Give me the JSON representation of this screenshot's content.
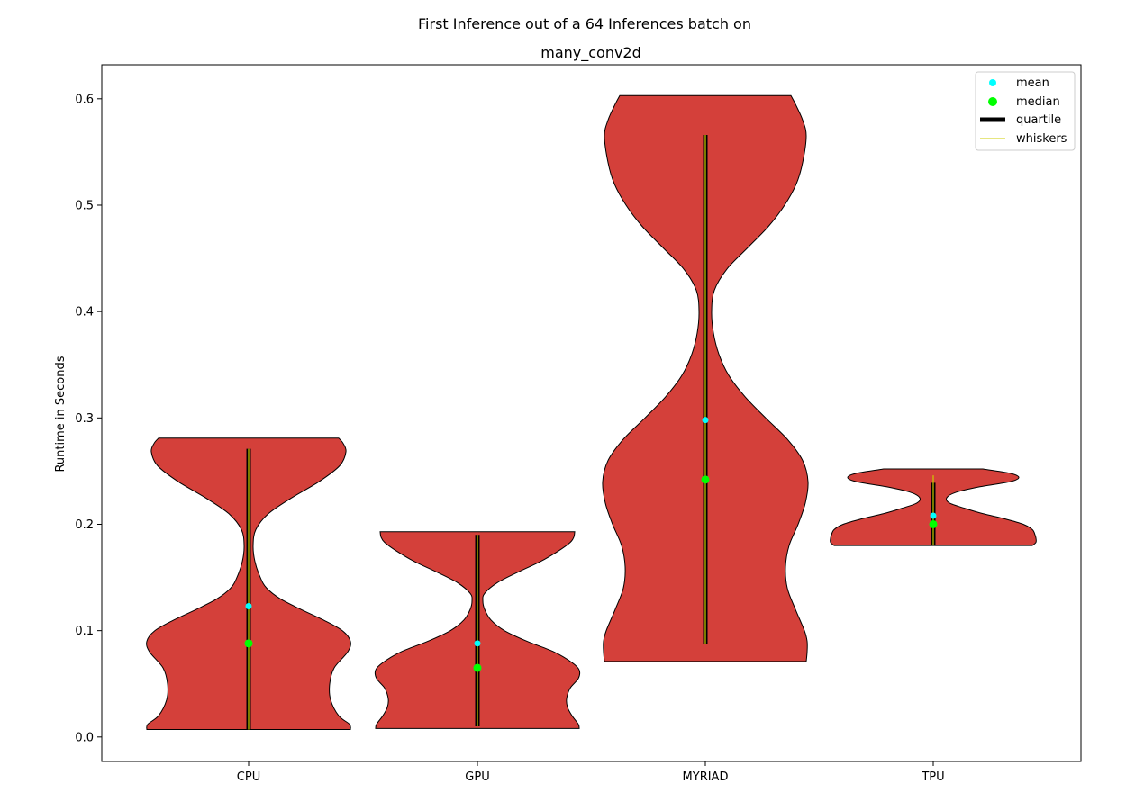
{
  "chart_data": {
    "type": "violin",
    "title": "First Inference out of a 64 Inferences batch on",
    "subtitle": "many_conv2d",
    "xlabel": "",
    "ylabel": "Runtime in Seconds",
    "ylim": [
      -0.023,
      0.632
    ],
    "yticks": [
      0.0,
      0.1,
      0.2,
      0.3,
      0.4,
      0.5,
      0.6
    ],
    "ytick_labels": [
      "0.0",
      "0.1",
      "0.2",
      "0.3",
      "0.4",
      "0.5",
      "0.6"
    ],
    "categories": [
      "CPU",
      "GPU",
      "MYRIAD",
      "TPU"
    ],
    "grid": false,
    "legend_position": "top-right",
    "legend": [
      {
        "label": "mean",
        "kind": "marker",
        "color": "#00ffff"
      },
      {
        "label": "median",
        "kind": "marker",
        "color": "#00ff00"
      },
      {
        "label": "quartile",
        "kind": "thick-line",
        "color": "#000000"
      },
      {
        "label": "whiskers",
        "kind": "thin-line",
        "color": "#cccc00"
      }
    ],
    "colors": {
      "violin_fill": "#d4403a",
      "violin_edge": "#000000",
      "mean": "#00ffff",
      "median": "#00ff00",
      "quartile": "#000000",
      "whiskers": "#cccc00"
    },
    "series": [
      {
        "category": "CPU",
        "min": 0.007,
        "max": 0.281,
        "mean": 0.123,
        "median": 0.088,
        "q1": 0.007,
        "q3": 0.271,
        "whisker_low": 0.007,
        "whisker_high": 0.271,
        "profile": [
          [
            0.007,
            0.113
          ],
          [
            0.012,
            0.112
          ],
          [
            0.02,
            0.1
          ],
          [
            0.035,
            0.091
          ],
          [
            0.05,
            0.09
          ],
          [
            0.065,
            0.095
          ],
          [
            0.08,
            0.11
          ],
          [
            0.09,
            0.113
          ],
          [
            0.1,
            0.104
          ],
          [
            0.11,
            0.083
          ],
          [
            0.12,
            0.058
          ],
          [
            0.13,
            0.035
          ],
          [
            0.14,
            0.02
          ],
          [
            0.15,
            0.013
          ],
          [
            0.165,
            0.007
          ],
          [
            0.18,
            0.005
          ],
          [
            0.195,
            0.008
          ],
          [
            0.21,
            0.022
          ],
          [
            0.225,
            0.048
          ],
          [
            0.24,
            0.078
          ],
          [
            0.255,
            0.101
          ],
          [
            0.268,
            0.108
          ],
          [
            0.276,
            0.105
          ],
          [
            0.281,
            0.1
          ]
        ]
      },
      {
        "category": "GPU",
        "min": 0.008,
        "max": 0.193,
        "mean": 0.088,
        "median": 0.065,
        "q1": 0.01,
        "q3": 0.19,
        "whisker_low": 0.01,
        "whisker_high": 0.19,
        "profile": [
          [
            0.008,
            0.113
          ],
          [
            0.012,
            0.112
          ],
          [
            0.02,
            0.105
          ],
          [
            0.028,
            0.1
          ],
          [
            0.036,
            0.099
          ],
          [
            0.046,
            0.103
          ],
          [
            0.055,
            0.112
          ],
          [
            0.063,
            0.113
          ],
          [
            0.07,
            0.105
          ],
          [
            0.08,
            0.085
          ],
          [
            0.09,
            0.055
          ],
          [
            0.1,
            0.03
          ],
          [
            0.11,
            0.015
          ],
          [
            0.12,
            0.008
          ],
          [
            0.128,
            0.006
          ],
          [
            0.135,
            0.008
          ],
          [
            0.145,
            0.022
          ],
          [
            0.155,
            0.045
          ],
          [
            0.165,
            0.07
          ],
          [
            0.175,
            0.09
          ],
          [
            0.183,
            0.103
          ],
          [
            0.188,
            0.107
          ],
          [
            0.193,
            0.108
          ]
        ]
      },
      {
        "category": "MYRIAD",
        "min": 0.071,
        "max": 0.603,
        "mean": 0.298,
        "median": 0.242,
        "q1": 0.087,
        "q3": 0.566,
        "whisker_low": 0.087,
        "whisker_high": 0.566,
        "profile": [
          [
            0.071,
            0.112
          ],
          [
            0.08,
            0.113
          ],
          [
            0.09,
            0.113
          ],
          [
            0.1,
            0.11
          ],
          [
            0.12,
            0.1
          ],
          [
            0.14,
            0.091
          ],
          [
            0.16,
            0.089
          ],
          [
            0.18,
            0.093
          ],
          [
            0.2,
            0.103
          ],
          [
            0.22,
            0.111
          ],
          [
            0.24,
            0.114
          ],
          [
            0.26,
            0.108
          ],
          [
            0.28,
            0.091
          ],
          [
            0.3,
            0.067
          ],
          [
            0.32,
            0.044
          ],
          [
            0.34,
            0.026
          ],
          [
            0.36,
            0.015
          ],
          [
            0.38,
            0.009
          ],
          [
            0.4,
            0.007
          ],
          [
            0.42,
            0.01
          ],
          [
            0.44,
            0.024
          ],
          [
            0.46,
            0.047
          ],
          [
            0.48,
            0.07
          ],
          [
            0.5,
            0.088
          ],
          [
            0.52,
            0.101
          ],
          [
            0.54,
            0.108
          ],
          [
            0.565,
            0.112
          ],
          [
            0.58,
            0.108
          ],
          [
            0.595,
            0.1
          ],
          [
            0.603,
            0.095
          ]
        ]
      },
      {
        "category": "TPU",
        "min": 0.18,
        "max": 0.252,
        "mean": 0.208,
        "median": 0.2,
        "q1": 0.18,
        "q3": 0.239,
        "whisker_low": 0.18,
        "whisker_high": 0.246,
        "profile": [
          [
            0.18,
            0.11
          ],
          [
            0.183,
            0.114
          ],
          [
            0.187,
            0.114
          ],
          [
            0.19,
            0.113
          ],
          [
            0.195,
            0.11
          ],
          [
            0.2,
            0.1
          ],
          [
            0.205,
            0.08
          ],
          [
            0.21,
            0.055
          ],
          [
            0.215,
            0.035
          ],
          [
            0.22,
            0.018
          ],
          [
            0.225,
            0.015
          ],
          [
            0.23,
            0.025
          ],
          [
            0.235,
            0.05
          ],
          [
            0.24,
            0.085
          ],
          [
            0.244,
            0.095
          ],
          [
            0.248,
            0.085
          ],
          [
            0.252,
            0.055
          ]
        ]
      }
    ]
  }
}
